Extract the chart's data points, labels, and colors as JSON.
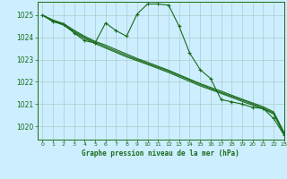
{
  "title": "Graphe pression niveau de la mer (hPa)",
  "bg_color": "#cceeff",
  "grid_color": "#aacccc",
  "line_color": "#1a6b1a",
  "xlim": [
    -0.5,
    23
  ],
  "ylim": [
    1019.4,
    1025.6
  ],
  "yticks": [
    1020,
    1021,
    1022,
    1023,
    1024,
    1025
  ],
  "xticks": [
    0,
    1,
    2,
    3,
    4,
    5,
    6,
    7,
    8,
    9,
    10,
    11,
    12,
    13,
    14,
    15,
    16,
    17,
    18,
    19,
    20,
    21,
    22,
    23
  ],
  "series_main": [
    1025.0,
    1024.7,
    1024.6,
    1024.2,
    1023.85,
    1023.75,
    1024.65,
    1024.3,
    1024.05,
    1025.05,
    1025.5,
    1025.5,
    1025.45,
    1024.5,
    1023.3,
    1022.55,
    1022.15,
    1021.2,
    1021.1,
    1021.0,
    1020.85,
    1020.8,
    1020.35,
    1019.6
  ],
  "series_smooth": [
    [
      1025.0,
      1024.72,
      1024.55,
      1024.22,
      1023.95,
      1023.72,
      1023.52,
      1023.32,
      1023.12,
      1022.95,
      1022.78,
      1022.6,
      1022.42,
      1022.22,
      1022.02,
      1021.82,
      1021.65,
      1021.48,
      1021.3,
      1021.12,
      1020.95,
      1020.78,
      1020.55,
      1019.62
    ],
    [
      1025.0,
      1024.75,
      1024.58,
      1024.28,
      1024.0,
      1023.78,
      1023.58,
      1023.38,
      1023.18,
      1023.0,
      1022.82,
      1022.65,
      1022.48,
      1022.28,
      1022.08,
      1021.88,
      1021.7,
      1021.52,
      1021.35,
      1021.18,
      1021.0,
      1020.82,
      1020.6,
      1019.68
    ],
    [
      1025.0,
      1024.78,
      1024.62,
      1024.32,
      1024.05,
      1023.82,
      1023.65,
      1023.45,
      1023.25,
      1023.05,
      1022.88,
      1022.7,
      1022.52,
      1022.32,
      1022.12,
      1021.92,
      1021.75,
      1021.58,
      1021.4,
      1021.22,
      1021.05,
      1020.88,
      1020.65,
      1019.72
    ]
  ]
}
